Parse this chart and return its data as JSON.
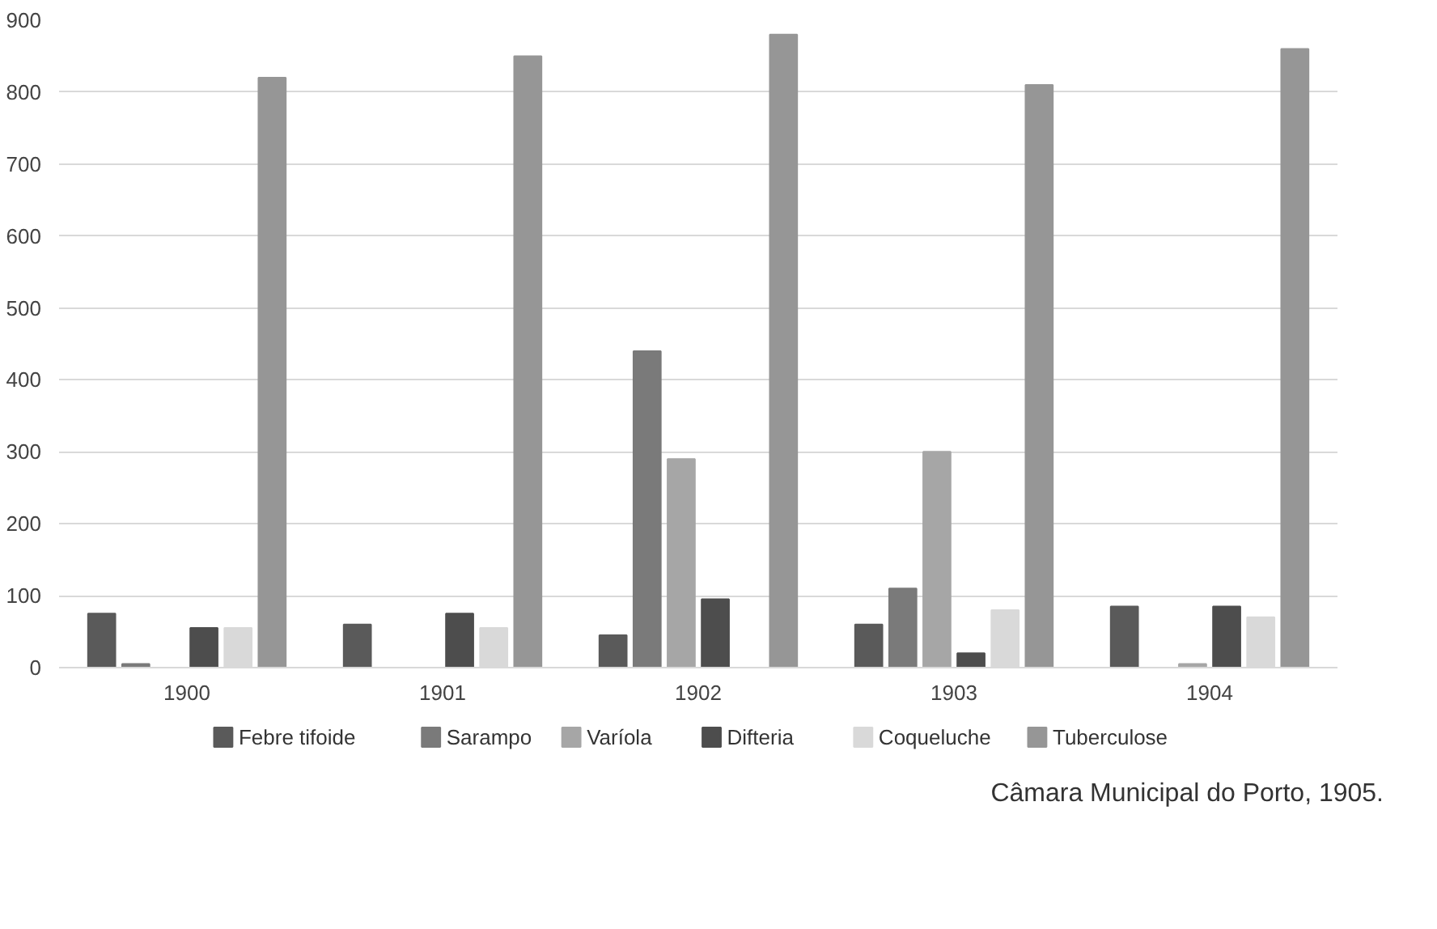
{
  "chart_data": {
    "type": "bar",
    "categories": [
      "1900",
      "1901",
      "1902",
      "1903",
      "1904"
    ],
    "series": [
      {
        "name": "Febre tifoide",
        "color": "#5a5a5a",
        "values": [
          75,
          60,
          45,
          60,
          85
        ]
      },
      {
        "name": "Sarampo",
        "color": "#7a7a7a",
        "values": [
          5,
          0,
          440,
          110,
          0
        ]
      },
      {
        "name": "Varíola",
        "color": "#a6a6a6",
        "values": [
          0,
          0,
          290,
          300,
          5
        ]
      },
      {
        "name": "Difteria",
        "color": "#4d4d4d",
        "values": [
          55,
          75,
          95,
          20,
          85
        ]
      },
      {
        "name": "Coqueluche",
        "color": "#d9d9d9",
        "values": [
          55,
          55,
          0,
          80,
          70
        ]
      },
      {
        "name": "Tuberculose",
        "color": "#969696",
        "values": [
          820,
          850,
          880,
          810,
          860
        ]
      }
    ],
    "ylim": [
      0,
      900
    ],
    "yticks": [
      0,
      100,
      200,
      300,
      400,
      500,
      600,
      700,
      800,
      900
    ],
    "grid": "y",
    "legend": "bottom",
    "annotations": [
      "Câmara Municipal do Porto, 1905."
    ]
  }
}
